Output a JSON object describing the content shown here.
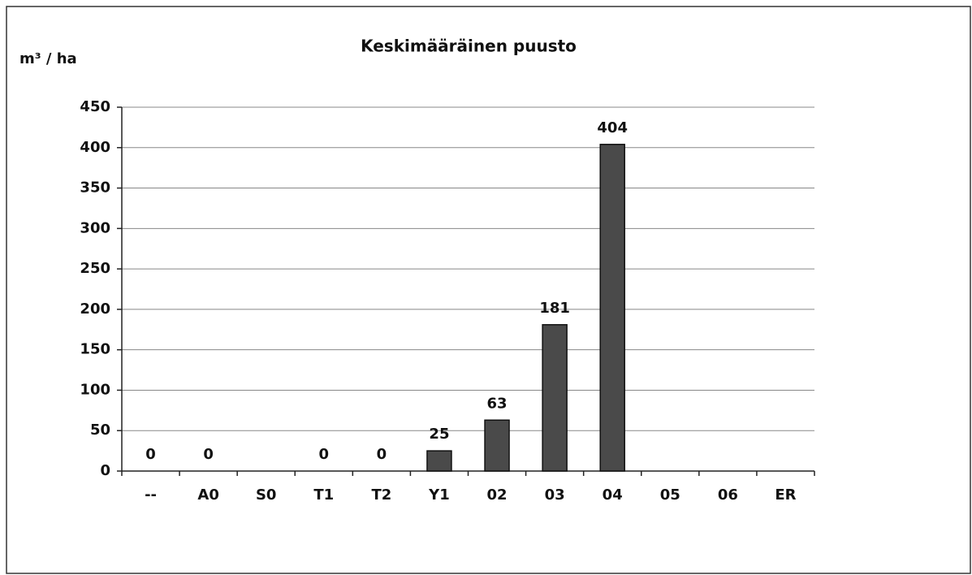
{
  "chart_data": {
    "type": "bar",
    "title": "Keskimääräinen puusto",
    "y_label": "m³ / ha",
    "categories": [
      "--",
      "A0",
      "S0",
      "T1",
      "T2",
      "Y1",
      "02",
      "03",
      "04",
      "05",
      "06",
      "ER"
    ],
    "values": [
      0,
      0,
      null,
      0,
      0,
      25,
      63,
      181,
      404,
      null,
      null,
      null
    ],
    "color": "#4a4a4a",
    "ylim": [
      0,
      450
    ],
    "yticks": [
      0,
      50,
      100,
      150,
      200,
      250,
      300,
      350,
      400,
      450
    ],
    "grid": true
  }
}
